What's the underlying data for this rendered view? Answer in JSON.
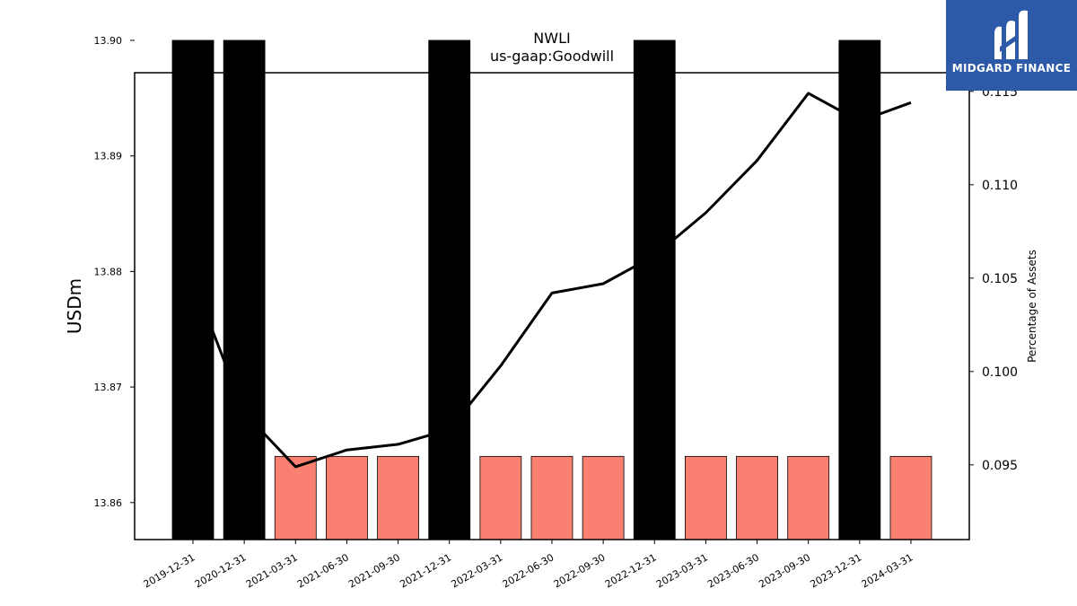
{
  "chart_data": {
    "type": "bar+line",
    "title": "NWLI",
    "subtitle": "us-gaap:Goodwill",
    "ylabel": "USDm",
    "y2label": "Percentage of Assets",
    "categories": [
      "2019-12-31",
      "2020-12-31",
      "2021-03-31",
      "2021-06-30",
      "2021-09-30",
      "2021-12-31",
      "2022-03-31",
      "2022-06-30",
      "2022-09-30",
      "2022-12-31",
      "2023-03-31",
      "2023-06-30",
      "2023-09-30",
      "2023-12-31",
      "2024-03-31"
    ],
    "bars": {
      "values": [
        13.9,
        13.9,
        13.864,
        13.864,
        13.864,
        13.9,
        13.864,
        13.864,
        13.864,
        13.9,
        13.864,
        13.864,
        13.864,
        13.9,
        13.864
      ],
      "colors": [
        "#000000",
        "#000000",
        "#fa8072",
        "#fa8072",
        "#fa8072",
        "#000000",
        "#fa8072",
        "#fa8072",
        "#fa8072",
        "#000000",
        "#fa8072",
        "#fa8072",
        "#fa8072",
        "#000000",
        "#fa8072"
      ]
    },
    "line": {
      "values": [
        0.1049,
        0.0978,
        0.0949,
        0.0958,
        0.0961,
        0.0969,
        0.1003,
        0.1042,
        0.1047,
        0.1062,
        0.1085,
        0.1113,
        0.1149,
        0.1134,
        0.1144
      ],
      "color": "#000000"
    },
    "ylim": [
      13.8568,
      13.8972
    ],
    "y_ticks": [
      "13.86",
      "13.87",
      "13.88",
      "13.89",
      "13.90"
    ],
    "y_tick_values": [
      13.86,
      13.87,
      13.88,
      13.89,
      13.9
    ],
    "y2lim": [
      0.091,
      0.116
    ],
    "y2_ticks": [
      "0.095",
      "0.100",
      "0.105",
      "0.110",
      "0.115"
    ],
    "y2_tick_values": [
      0.095,
      0.1,
      0.105,
      0.11,
      0.115
    ],
    "grid": false
  },
  "logo": {
    "brand": "MIDGARD FINANCE",
    "icon": "midgard-logo-icon",
    "background": "#2c5aa8"
  }
}
